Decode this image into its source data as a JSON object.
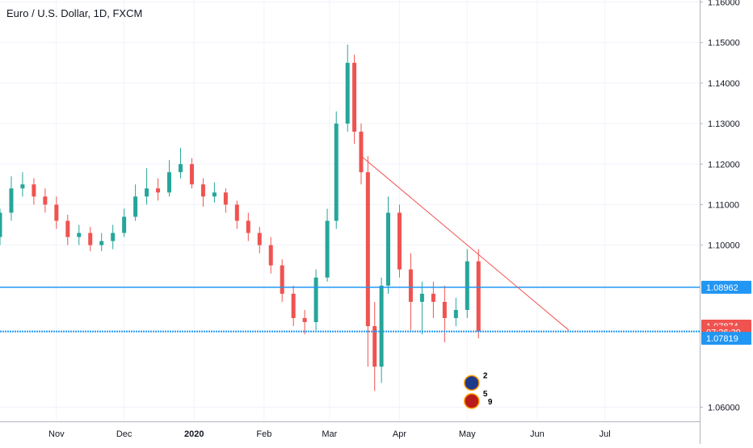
{
  "chart_title": "Euro / U.S. Dollar, 1D, FXCM",
  "colors": {
    "up": "#26a69a",
    "down": "#ef5350",
    "hline": "#2196f3",
    "trendline": "#ef5350",
    "grid": "#f0f3fa",
    "axis_text": "#131722"
  },
  "chart_data": {
    "type": "candlestick",
    "title": "Euro / U.S. Dollar, 1D, FXCM",
    "x_axis": {
      "ticks": [
        {
          "date": "2019-11-01",
          "label": "Nov"
        },
        {
          "date": "2019-12-01",
          "label": "Dec"
        },
        {
          "date": "2020-01-01",
          "label": "2020"
        },
        {
          "date": "2020-02-01",
          "label": "Feb"
        },
        {
          "date": "2020-03-01",
          "label": "Mar"
        },
        {
          "date": "2020-04-01",
          "label": "Apr"
        },
        {
          "date": "2020-05-01",
          "label": "May"
        },
        {
          "date": "2020-06-01",
          "label": "Jun"
        },
        {
          "date": "2020-07-01",
          "label": "Jul"
        }
      ],
      "range": [
        "2019-10-07",
        "2020-08-12"
      ]
    },
    "y_axis": {
      "ticks": [
        "1.06000",
        "1.10000",
        "1.11000",
        "1.12000",
        "1.13000",
        "1.14000",
        "1.15000",
        "1.16000"
      ],
      "range": [
        1.0565,
        1.1605
      ]
    },
    "series": [
      {
        "x": [
          "2019-10-07",
          "2019-10-12",
          "2019-10-17",
          "2019-10-22",
          "2019-10-27",
          "2019-11-01",
          "2019-11-06",
          "2019-11-11",
          "2019-11-16",
          "2019-11-21",
          "2019-11-26",
          "2019-12-01",
          "2019-12-06",
          "2019-12-11",
          "2019-12-16",
          "2019-12-21",
          "2019-12-26",
          "2019-12-31",
          "2020-01-05",
          "2020-01-10",
          "2020-01-15",
          "2020-01-20",
          "2020-01-25",
          "2020-01-30",
          "2020-02-04",
          "2020-02-09",
          "2020-02-14",
          "2020-02-19",
          "2020-02-24",
          "2020-02-29",
          "2020-03-04",
          "2020-03-09",
          "2020-03-12",
          "2020-03-15",
          "2020-03-18",
          "2020-03-21",
          "2020-03-24",
          "2020-03-27",
          "2020-04-01",
          "2020-04-06",
          "2020-04-11",
          "2020-04-16",
          "2020-04-21",
          "2020-04-26",
          "2020-05-01",
          "2020-05-06"
        ],
        "open": [
          1.102,
          1.108,
          1.114,
          1.115,
          1.112,
          1.11,
          1.106,
          1.102,
          1.103,
          1.1,
          1.101,
          1.103,
          1.107,
          1.112,
          1.114,
          1.113,
          1.118,
          1.12,
          1.115,
          1.112,
          1.113,
          1.11,
          1.106,
          1.103,
          1.1,
          1.095,
          1.088,
          1.082,
          1.081,
          1.092,
          1.106,
          1.13,
          1.145,
          1.128,
          1.118,
          1.08,
          1.07,
          1.09,
          1.108,
          1.094,
          1.086,
          1.088,
          1.086,
          1.082,
          1.084,
          1.096
        ],
        "close": [
          1.108,
          1.114,
          1.115,
          1.112,
          1.11,
          1.106,
          1.102,
          1.103,
          1.1,
          1.101,
          1.103,
          1.107,
          1.112,
          1.114,
          1.113,
          1.118,
          1.12,
          1.115,
          1.112,
          1.113,
          1.11,
          1.106,
          1.103,
          1.1,
          1.095,
          1.088,
          1.082,
          1.081,
          1.092,
          1.106,
          1.13,
          1.145,
          1.128,
          1.118,
          1.08,
          1.07,
          1.09,
          1.108,
          1.094,
          1.086,
          1.088,
          1.086,
          1.082,
          1.084,
          1.096,
          1.0787
        ],
        "high": [
          1.109,
          1.117,
          1.118,
          1.1165,
          1.114,
          1.112,
          1.1075,
          1.105,
          1.1045,
          1.103,
          1.105,
          1.109,
          1.115,
          1.119,
          1.1165,
          1.121,
          1.124,
          1.1215,
          1.1165,
          1.1155,
          1.114,
          1.111,
          1.108,
          1.1045,
          1.102,
          1.0965,
          1.09,
          1.084,
          1.094,
          1.109,
          1.133,
          1.1495,
          1.147,
          1.13,
          1.122,
          1.086,
          1.092,
          1.112,
          1.11,
          1.098,
          1.091,
          1.091,
          1.09,
          1.087,
          1.099,
          1.099
        ],
        "low": [
          1.1,
          1.106,
          1.112,
          1.11,
          1.108,
          1.104,
          1.1,
          1.1,
          1.0985,
          1.0985,
          1.099,
          1.102,
          1.106,
          1.11,
          1.111,
          1.112,
          1.1165,
          1.114,
          1.1095,
          1.1105,
          1.108,
          1.104,
          1.101,
          1.098,
          1.093,
          1.086,
          1.08,
          1.078,
          1.079,
          1.091,
          1.104,
          1.128,
          1.125,
          1.115,
          1.07,
          1.064,
          1.066,
          1.088,
          1.092,
          1.079,
          1.078,
          1.082,
          1.076,
          1.08,
          1.082,
          1.077
        ]
      }
    ],
    "horizontal_lines": [
      {
        "y": 1.0896,
        "label": "1.08962"
      },
      {
        "y": 1.0787
      }
    ],
    "trendline": {
      "from": {
        "x": "2020-03-15",
        "y": 1.122
      },
      "to": {
        "x": "2020-06-15",
        "y": 1.079
      }
    },
    "price_labels": [
      {
        "label": "1.08962",
        "y": 1.0896,
        "color": "#2196f3"
      },
      {
        "label": "1.07874",
        "y": 1.08,
        "color": "#ef5350"
      },
      {
        "label": "07:26:39",
        "y": 1.0785,
        "color": "#ef5350"
      },
      {
        "label": "1.07819",
        "y": 1.077,
        "color": "#2196f3"
      }
    ],
    "event_markers": [
      {
        "x": "2020-05-03",
        "y": 1.066,
        "badge": "2",
        "icon": "eu-flag-icon"
      },
      {
        "x": "2020-05-03",
        "y": 1.0615,
        "badge": "5",
        "badge2": "9",
        "icon": "us-flag-icon"
      }
    ],
    "grid": true,
    "legend": "none"
  }
}
